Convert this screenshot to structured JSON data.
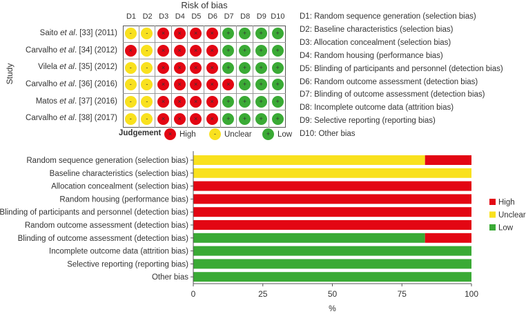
{
  "colors": {
    "high": "#e30613",
    "unclear": "#f9e11e",
    "low": "#3aaa35",
    "grid": "#999999"
  },
  "symbols": {
    "high": "×",
    "unclear": "-",
    "low": "+"
  },
  "traffic_light": {
    "title": "Risk of bias",
    "y_axis_label": "Study",
    "domains": [
      "D1",
      "D2",
      "D3",
      "D4",
      "D5",
      "D6",
      "D7",
      "D8",
      "D9",
      "D10"
    ],
    "studies": [
      {
        "label_prefix": "Saito ",
        "etal": "et al",
        "label_suffix": ". [33] (2011)",
        "judgements": [
          "unclear",
          "unclear",
          "high",
          "high",
          "high",
          "high",
          "low",
          "low",
          "low",
          "low"
        ]
      },
      {
        "label_prefix": "Carvalho ",
        "etal": "et al",
        "label_suffix": ". [34] (2012)",
        "judgements": [
          "high",
          "unclear",
          "high",
          "high",
          "high",
          "high",
          "low",
          "low",
          "low",
          "low"
        ]
      },
      {
        "label_prefix": "Vilela ",
        "etal": "et al",
        "label_suffix": ". [35] (2012)",
        "judgements": [
          "unclear",
          "unclear",
          "high",
          "high",
          "high",
          "high",
          "low",
          "low",
          "low",
          "low"
        ]
      },
      {
        "label_prefix": "Carvalho ",
        "etal": "et al",
        "label_suffix": ". [36] (2016)",
        "judgements": [
          "unclear",
          "unclear",
          "high",
          "high",
          "high",
          "high",
          "high",
          "low",
          "low",
          "low"
        ]
      },
      {
        "label_prefix": "Matos ",
        "etal": "et al",
        "label_suffix": ". [37] (2016)",
        "judgements": [
          "unclear",
          "unclear",
          "high",
          "high",
          "high",
          "high",
          "low",
          "low",
          "low",
          "low"
        ]
      },
      {
        "label_prefix": "Carvalho ",
        "etal": "et al",
        "label_suffix": ". [38] (2017)",
        "judgements": [
          "unclear",
          "unclear",
          "high",
          "high",
          "high",
          "high",
          "low",
          "low",
          "low",
          "low"
        ]
      }
    ],
    "legend_title": "Judgement",
    "legend": [
      {
        "key": "high",
        "label": "High"
      },
      {
        "key": "unclear",
        "label": "Unclear"
      },
      {
        "key": "low",
        "label": "Low"
      }
    ],
    "domain_definitions": [
      "D1: Random sequence generation (selection bias)",
      "D2: Baseline characteristics (selection bias)",
      "D3: Allocation concealment (selection bias)",
      "D4: Random housing (performance bias)",
      "D5: Blinding of participants and personnel (detection bias)",
      "D6: Random outcome assessment (detection bias)",
      "D7: Blinding of outcome assessment (detection bias)",
      "D8: Incomplete outcome data (attrition bias)",
      "D9: Selective reporting (reporting bias)",
      "D10: Other bias"
    ]
  },
  "chart_data": {
    "type": "bar",
    "orientation": "horizontal",
    "stacked": true,
    "title": "",
    "xlabel": "%",
    "ylabel": "",
    "xlim": [
      0,
      100
    ],
    "xticks": [
      0,
      25,
      50,
      75,
      100
    ],
    "grid": false,
    "legend_position": "right",
    "categories": [
      "Random sequence generation (selection bias)",
      "Baseline characteristics (selection bias)",
      "Allocation concealment (selection bias)",
      "Random housing (performance bias)",
      "Blinding of participants and personnel (detection bias)",
      "Random outcome assessment (detection bias)",
      "Blinding of outcome assessment (detection bias)",
      "Incomplete outcome data (attrition bias)",
      "Selective reporting (reporting bias)",
      "Other bias"
    ],
    "series": [
      {
        "name": "Low",
        "key": "low",
        "values": [
          0,
          0,
          0,
          0,
          0,
          0,
          83.3,
          100,
          100,
          100
        ]
      },
      {
        "name": "Unclear",
        "key": "unclear",
        "values": [
          83.3,
          100,
          0,
          0,
          0,
          0,
          0,
          0,
          0,
          0
        ]
      },
      {
        "name": "High",
        "key": "high",
        "values": [
          16.7,
          0,
          100,
          100,
          100,
          100,
          16.7,
          0,
          0,
          0
        ]
      }
    ],
    "legend": [
      "High",
      "Unclear",
      "Low"
    ]
  }
}
